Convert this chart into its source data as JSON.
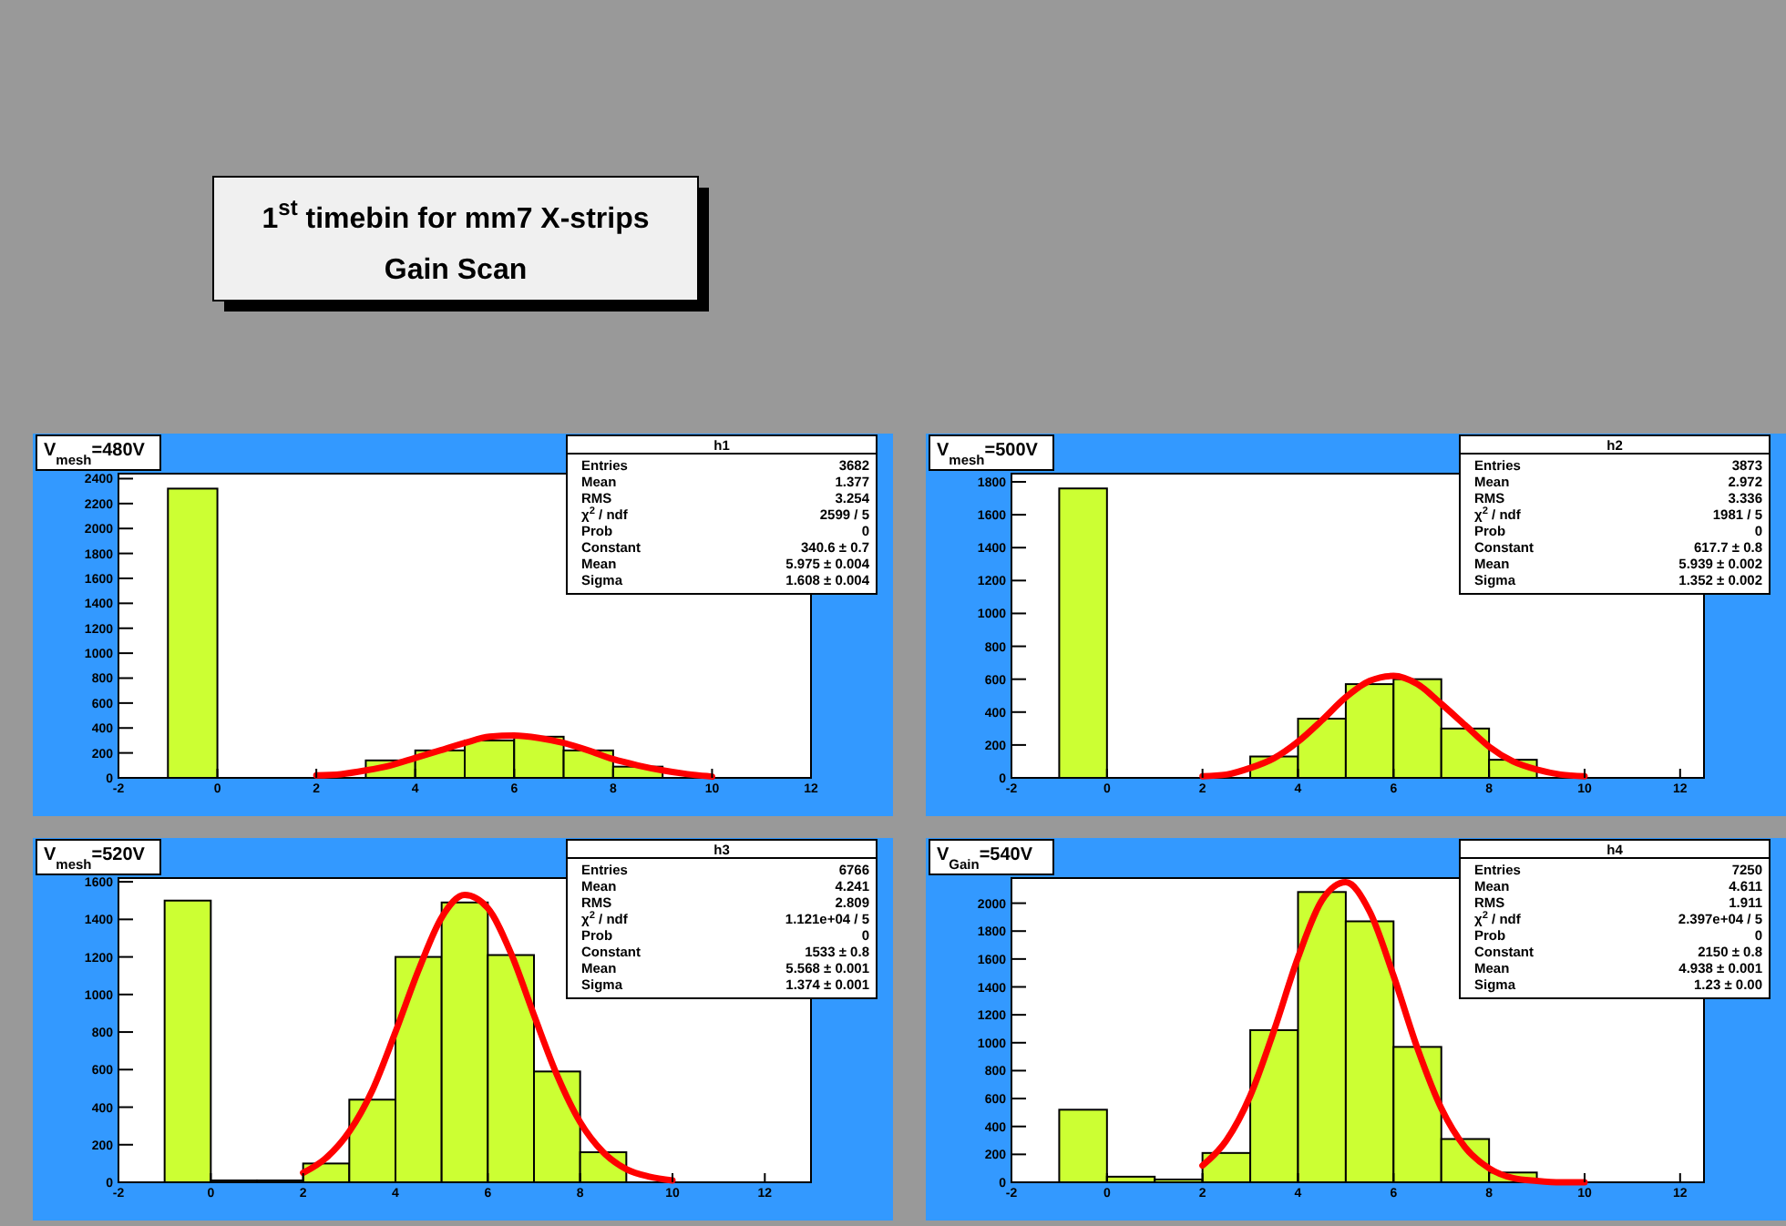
{
  "chart_data": [
    {
      "type": "other",
      "title": "1$^{st}$ timebin for mm7 X-strips",
      "subtitle": "Gain Scan"
    },
    {
      "type": "histogram",
      "title": "V$_{mesh}$=480V",
      "bins": [
        -1,
        0,
        1,
        2,
        3,
        4,
        5,
        6,
        7,
        8,
        9
      ],
      "xlim": [
        -2,
        12
      ],
      "xticks": [
        -2,
        0,
        2,
        4,
        6,
        8,
        10,
        12
      ],
      "ylim": [
        0,
        2440
      ],
      "yticks": [
        0,
        200,
        400,
        600,
        800,
        1000,
        1200,
        1400,
        1600,
        1800,
        2000,
        2200,
        2400
      ],
      "series": [
        {
          "type": "histogram",
          "color": "#ccff33",
          "values": [
            2320,
            0,
            0,
            0,
            140,
            220,
            300,
            330,
            220,
            90
          ]
        },
        {
          "type": "line",
          "color": "#ff0000",
          "x": [
            2,
            2.5,
            3,
            3.5,
            4,
            4.5,
            5,
            5.5,
            6,
            6.5,
            7,
            7.5,
            8,
            8.5,
            9,
            9.5,
            10
          ],
          "values": [
            20,
            30,
            60,
            100,
            160,
            220,
            280,
            330,
            340,
            320,
            280,
            220,
            150,
            100,
            60,
            30,
            10
          ]
        }
      ],
      "annotations": [
        "h1",
        "Entries",
        "3682",
        "Mean",
        "1.377",
        "RMS",
        "3.254",
        "χ$^{2}$ / ndf",
        "2599 / 5",
        "Prob",
        "0",
        "Constant",
        "340.6 ± 0.7",
        "Mean",
        "5.975 ± 0.004",
        "Sigma",
        "1.608 ± 0.004"
      ]
    },
    {
      "type": "histogram",
      "title": "V$_{mesh}$=500V",
      "bins": [
        -1,
        0,
        1,
        2,
        3,
        4,
        5,
        6,
        7,
        8,
        9,
        10
      ],
      "xlim": [
        -2,
        12.5
      ],
      "xticks": [
        -2,
        0,
        2,
        4,
        6,
        8,
        10,
        12
      ],
      "ylim": [
        0,
        1850
      ],
      "yticks": [
        0,
        200,
        400,
        600,
        800,
        1000,
        1200,
        1400,
        1600,
        1800
      ],
      "series": [
        {
          "type": "histogram",
          "color": "#ccff33",
          "values": [
            1760,
            0,
            0,
            null,
            130,
            360,
            570,
            600,
            300,
            110,
            0
          ]
        },
        {
          "type": "line",
          "color": "#ff0000",
          "x": [
            2,
            2.5,
            3,
            3.5,
            4,
            4.5,
            5,
            5.5,
            6,
            6.5,
            7,
            7.5,
            8,
            8.5,
            9,
            9.5,
            10
          ],
          "values": [
            10,
            20,
            60,
            120,
            220,
            350,
            490,
            590,
            620,
            570,
            450,
            320,
            190,
            100,
            50,
            20,
            10
          ]
        }
      ],
      "annotations": [
        "h2",
        "Entries",
        "3873",
        "Mean",
        "2.972",
        "RMS",
        "3.336",
        "χ$^{2}$ / ndf",
        "1981 / 5",
        "Prob",
        "0",
        "Constant",
        "617.7 ± 0.8",
        "Mean",
        "5.939 ± 0.002",
        "Sigma",
        "1.352 ± 0.002"
      ]
    },
    {
      "type": "histogram",
      "title": "V$_{mesh}$=520V",
      "bins": [
        -1,
        0,
        1,
        2,
        3,
        4,
        5,
        6,
        7,
        8,
        9
      ],
      "xlim": [
        -2,
        13
      ],
      "xticks": [
        -2,
        0,
        2,
        4,
        6,
        8,
        10,
        12
      ],
      "ylim": [
        0,
        1620
      ],
      "yticks": [
        0,
        200,
        400,
        600,
        800,
        1000,
        1200,
        1400,
        1600
      ],
      "series": [
        {
          "type": "histogram",
          "color": "#ccff33",
          "values": [
            1500,
            10,
            10,
            100,
            440,
            1200,
            1490,
            1210,
            590,
            160
          ]
        },
        {
          "type": "line",
          "color": "#ff0000",
          "x": [
            2,
            2.5,
            3,
            3.5,
            4,
            4.5,
            5,
            5.5,
            6,
            6.5,
            7,
            7.5,
            8,
            8.5,
            9,
            9.5,
            10
          ],
          "values": [
            50,
            130,
            270,
            490,
            800,
            1130,
            1410,
            1530,
            1460,
            1220,
            890,
            570,
            320,
            160,
            70,
            30,
            10
          ]
        }
      ],
      "annotations": [
        "h3",
        "Entries",
        "6766",
        "Mean",
        "4.241",
        "RMS",
        "2.809",
        "χ$^{2}$ / ndf",
        "1.121e+04 / 5",
        "Prob",
        "0",
        "Constant",
        "1533 ± 0.8",
        "Mean",
        "5.568 ± 0.001",
        "Sigma",
        "1.374 ± 0.001"
      ]
    },
    {
      "type": "histogram",
      "title": "V$_{Gain}$=540V",
      "bins": [
        -1,
        0,
        1,
        2,
        3,
        4,
        5,
        6,
        7,
        8,
        9,
        10
      ],
      "xlim": [
        -2,
        12.5
      ],
      "xticks": [
        -2,
        0,
        2,
        4,
        6,
        8,
        10,
        12
      ],
      "ylim": [
        0,
        2180
      ],
      "yticks": [
        0,
        200,
        400,
        600,
        800,
        1000,
        1200,
        1400,
        1600,
        1800,
        2000
      ],
      "series": [
        {
          "type": "histogram",
          "color": "#ccff33",
          "values": [
            520,
            40,
            20,
            210,
            1090,
            2080,
            1870,
            970,
            310,
            70,
            10
          ]
        },
        {
          "type": "line",
          "color": "#ff0000",
          "x": [
            2,
            2.5,
            3,
            3.5,
            4,
            4.5,
            5,
            5.5,
            6,
            6.5,
            7,
            7.5,
            8,
            8.5,
            9,
            9.5,
            10
          ],
          "values": [
            120,
            300,
            620,
            1090,
            1610,
            2020,
            2150,
            1940,
            1480,
            960,
            530,
            250,
            100,
            30,
            10,
            0,
            0
          ]
        }
      ],
      "annotations": [
        "h4",
        "Entries",
        "7250",
        "Mean",
        "4.611",
        "RMS",
        "1.911",
        "χ$^{2}$ / ndf",
        "2.397e+04 / 5",
        "Prob",
        "0",
        "Constant",
        "2150 ± 0.8",
        "Mean",
        "4.938 ± 0.001",
        "Sigma",
        "1.23 ± 0.00"
      ]
    }
  ]
}
